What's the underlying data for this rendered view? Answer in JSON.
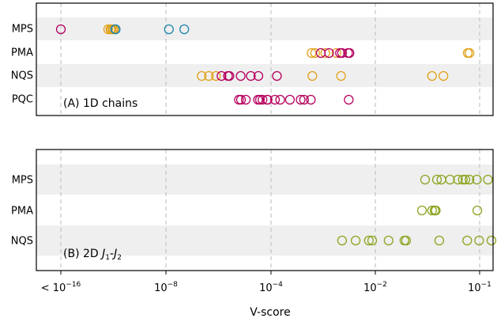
{
  "chart_data": [
    {
      "type": "scatter",
      "panel_label": "(A) 1D chains",
      "xlabel": "V-score",
      "x_ticks": [
        {
          "value": "<1e-16",
          "base": "< 10",
          "exp": "−16"
        },
        {
          "value": "1e-8",
          "base": "10",
          "exp": "−8"
        },
        {
          "value": "1e-4",
          "base": "10",
          "exp": "−4"
        },
        {
          "value": "1e-2",
          "base": "10",
          "exp": "−2"
        },
        {
          "value": "1e-1",
          "base": "10",
          "exp": "−1"
        }
      ],
      "rows": [
        "MPS",
        "PMA",
        "NQS",
        "PQC"
      ],
      "grid": "vertical dashed at major ticks",
      "colors": {
        "magenta": "#b5005e",
        "orange": "#e0a21b",
        "blue": "#1e86ad"
      },
      "points": [
        {
          "row": "MPS",
          "color": "magenta",
          "x": [
            1e-16
          ]
        },
        {
          "row": "MPS",
          "color": "orange",
          "x": [
            4e-13,
            6e-13,
            7e-13,
            9e-13,
            1.1e-12
          ]
        },
        {
          "row": "MPS",
          "color": "blue",
          "x": [
            1.4e-12,
            1.5e-12,
            1.3e-08,
            5e-08
          ]
        },
        {
          "row": "PMA",
          "color": "orange",
          "x": [
            0.0006,
            0.0007,
            0.0011,
            0.0018,
            0.077,
            0.08
          ]
        },
        {
          "row": "PMA",
          "color": "magenta",
          "x": [
            0.0009,
            0.0013,
            0.0021,
            0.0023,
            0.003,
            0.0032
          ]
        },
        {
          "row": "NQS",
          "color": "orange",
          "x": [
            2.3e-07,
            4.3e-07,
            8e-07,
            0.00062,
            0.0022,
            0.035,
            0.045
          ]
        },
        {
          "row": "NQS",
          "color": "magenta",
          "x": [
            1.3e-06,
            2.3e-06,
            2.6e-06,
            7e-06,
            1.7e-05,
            3.3e-05,
            0.00013
          ]
        },
        {
          "row": "PQC",
          "color": "magenta",
          "x": [
            6e-06,
            7.2e-06,
            1.1e-05,
            3.2e-05,
            3.8e-05,
            4.74e-05,
            7.4e-05,
            7.15e-05,
            0.000119,
            0.00015,
            0.00023,
            0.00037,
            0.00043,
            0.00058,
            0.0031
          ]
        }
      ]
    },
    {
      "type": "scatter",
      "panel_label_prefix": "(B) 2D ",
      "panel_label_j1": "J",
      "panel_label_j1_sub": "1",
      "panel_label_dash": "-",
      "panel_label_j2": "J",
      "panel_label_j2_sub": "2",
      "xlabel": "V-score",
      "rows": [
        "MPS",
        "PMA",
        "NQS"
      ],
      "colors": {
        "green": "#8aa520"
      },
      "points": [
        {
          "row": "MPS",
          "color": "green",
          "x": [
            0.03,
            0.039,
            0.043,
            0.052,
            0.062,
            0.069,
            0.073,
            0.08,
            0.094,
            0.12
          ]
        },
        {
          "row": "PMA",
          "color": "green",
          "x": [
            0.028,
            0.035,
            0.037,
            0.038,
            0.095
          ]
        },
        {
          "row": "NQS",
          "color": "green",
          "x": [
            0.0023,
            0.0042,
            0.0075,
            0.0087,
            0.0134,
            0.019,
            0.0197,
            0.041,
            0.076,
            0.099,
            0.13
          ]
        }
      ]
    }
  ]
}
